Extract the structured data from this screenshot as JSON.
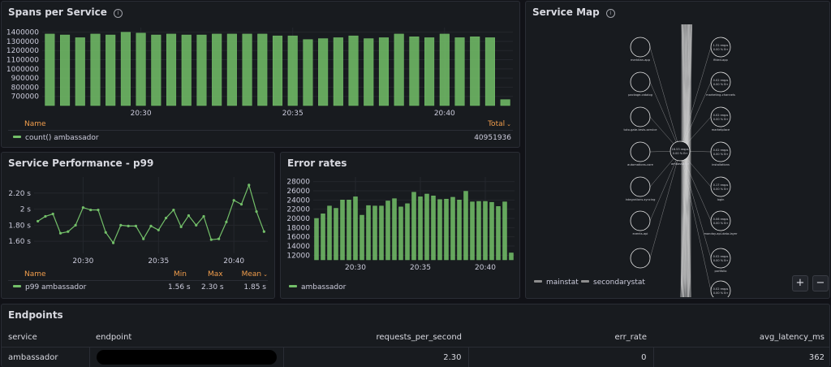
{
  "spans_panel": {
    "title": "Spans per Service",
    "info_icon": "i",
    "legend_header_name": "Name",
    "legend_header_total": "Total",
    "legend_item_name": "count() ambassador",
    "legend_item_total": "40951936"
  },
  "perf_panel": {
    "title": "Service Performance - p99",
    "legend_header_name": "Name",
    "legend_header_min": "Min",
    "legend_header_max": "Max",
    "legend_header_mean": "Mean",
    "legend_item_name": "p99 ambassador",
    "legend_item_min": "1.56 s",
    "legend_item_max": "2.30 s",
    "legend_item_mean": "1.85 s"
  },
  "error_panel": {
    "title": "Error rates",
    "legend_item_name": "ambassador"
  },
  "service_map": {
    "title": "Service Map",
    "info_icon": "i",
    "legend_mainstat": "mainstat",
    "legend_secondarystat": "secondarystat",
    "zoom_in": "+",
    "zoom_out": "−",
    "left_nodes": [
      "meridian-app",
      "package-catalog",
      "tuto-gate-tests-service",
      "automations-core",
      "integrations-syncing",
      "events-api",
      ""
    ],
    "right_nodes": [
      {
        "stat1": "1.31 reqps",
        "stat2": "0.00 % Err",
        "label": "fitted-app"
      },
      {
        "stat1": "0.02 reqps",
        "stat2": "0.00 % Err",
        "label": "marketing-channels"
      },
      {
        "stat1": "0.02 reqps",
        "stat2": "0.00 % Err",
        "label": "marketplace"
      },
      {
        "stat1": "0.02 reqps",
        "stat2": "0.00 % Err",
        "label": "installations"
      },
      {
        "stat1": "0.17 reqps",
        "stat2": "0.00 % Err",
        "label": "login"
      },
      {
        "stat1": "0.06 reqps",
        "stat2": "0.00 % Err",
        "label": "monday-api-data-layer"
      },
      {
        "stat1": "0.02 reqps",
        "stat2": "0.00 % Err",
        "label": "portfolio"
      },
      {
        "stat1": "0.02 reqps",
        "stat2": "0.00 % Err",
        "label": ""
      }
    ],
    "center_node": {
      "stat1": "16.53 reqps",
      "stat2": "0.00 % Err",
      "label": "ambassador"
    }
  },
  "endpoints": {
    "title": "Endpoints",
    "columns": [
      "service",
      "endpoint",
      "requests_per_second",
      "err_rate",
      "avg_latency_ms"
    ],
    "rows": [
      {
        "service": "ambassador",
        "endpoint": "",
        "requests_per_second": "2.30",
        "err_rate": "0",
        "avg_latency_ms": "362"
      }
    ]
  },
  "chart_data": [
    {
      "id": "spans",
      "type": "bar",
      "title": "Spans per Service",
      "series_name": "count() ambassador",
      "color": "#73bf69",
      "ylim": [
        600000,
        1450000
      ],
      "yticks": [
        "1400000",
        "1300000",
        "1200000",
        "1100000",
        "1000000",
        "900000",
        "800000",
        "700000"
      ],
      "ytick_values": [
        1400000,
        1300000,
        1200000,
        1100000,
        1000000,
        900000,
        800000,
        700000
      ],
      "xtick_labels": [
        "20:30",
        "20:35",
        "20:40"
      ],
      "xtick_positions": [
        6.5,
        16.5,
        26.5
      ],
      "values": [
        1380000,
        1370000,
        1340000,
        1380000,
        1370000,
        1400000,
        1390000,
        1370000,
        1380000,
        1370000,
        1370000,
        1380000,
        1380000,
        1380000,
        1380000,
        1360000,
        1360000,
        1320000,
        1330000,
        1340000,
        1360000,
        1330000,
        1340000,
        1380000,
        1350000,
        1340000,
        1380000,
        1340000,
        1350000,
        1340000,
        665000
      ]
    },
    {
      "id": "perf",
      "type": "line",
      "title": "Service Performance - p99",
      "series_name": "p99 ambassador",
      "color": "#73bf69",
      "ylim": [
        1.45,
        2.4
      ],
      "yticks": [
        "2.20 s",
        "2 s",
        "1.80 s",
        "1.60 s"
      ],
      "ytick_values": [
        2.2,
        2.0,
        1.8,
        1.6
      ],
      "xtick_labels": [
        "20:30",
        "20:35",
        "20:40"
      ],
      "xtick_positions": [
        6.5,
        16.5,
        26.5
      ],
      "values": [
        1.85,
        1.91,
        1.94,
        1.7,
        1.72,
        1.8,
        2.02,
        1.99,
        1.99,
        1.71,
        1.58,
        1.8,
        1.79,
        1.79,
        1.63,
        1.79,
        1.74,
        1.89,
        1.99,
        1.78,
        1.92,
        1.8,
        1.91,
        1.62,
        1.63,
        1.84,
        2.11,
        2.06,
        2.3,
        1.97,
        1.72
      ]
    },
    {
      "id": "errors",
      "type": "bar",
      "title": "Error rates",
      "series_name": "ambassador",
      "color": "#73bf69",
      "ylim": [
        11000,
        29000
      ],
      "yticks": [
        "28000",
        "26000",
        "24000",
        "22000",
        "20000",
        "18000",
        "16000",
        "14000",
        "12000"
      ],
      "ytick_values": [
        28000,
        26000,
        24000,
        22000,
        20000,
        18000,
        16000,
        14000,
        12000
      ],
      "xtick_labels": [
        "20:30",
        "20:35",
        "20:40"
      ],
      "xtick_positions": [
        6.5,
        16.5,
        26.5
      ],
      "values": [
        20000,
        21000,
        22700,
        22200,
        24000,
        24000,
        24700,
        20700,
        22800,
        22700,
        22700,
        23800,
        24300,
        22500,
        23200,
        25700,
        24700,
        25300,
        24900,
        24100,
        24200,
        24600,
        24000,
        25900,
        23600,
        23700,
        23700,
        23500,
        22600,
        23600,
        12500
      ]
    }
  ]
}
